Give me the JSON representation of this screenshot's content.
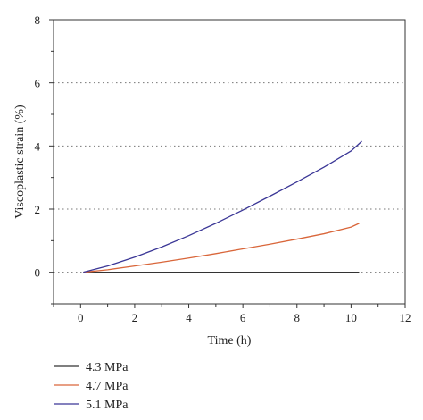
{
  "chart_data": {
    "type": "line",
    "xlabel": "Time (h)",
    "ylabel": "Viscoplastic strain (%)",
    "xlim": [
      -1,
      12
    ],
    "ylim": [
      -1,
      8
    ],
    "xticks": [
      0,
      2,
      4,
      6,
      8,
      10,
      12
    ],
    "yticks": [
      0,
      2,
      4,
      6,
      8
    ],
    "grid": "dotted horizontal lines at y ticks",
    "legend_position": "bottom-left, below plot",
    "series": [
      {
        "name": "4.3 MPa",
        "color": "#333333",
        "x": [
          0.1,
          1,
          2,
          3,
          4,
          5,
          6,
          7,
          8,
          9,
          10,
          10.3
        ],
        "y": [
          0,
          0,
          0,
          0,
          0,
          0,
          0,
          0,
          0,
          0,
          0,
          0
        ]
      },
      {
        "name": "4.7 MPa",
        "color": "#d9663a",
        "x": [
          0.1,
          1,
          2,
          3,
          4,
          5,
          6,
          7,
          8,
          9,
          10,
          10.3
        ],
        "y": [
          0,
          0.08,
          0.2,
          0.32,
          0.45,
          0.59,
          0.74,
          0.89,
          1.05,
          1.22,
          1.43,
          1.55
        ]
      },
      {
        "name": "5.1 MPa",
        "color": "#3a3696",
        "x": [
          0.1,
          1,
          2,
          3,
          4,
          5,
          6,
          7,
          8,
          9,
          10,
          10.4
        ],
        "y": [
          0,
          0.2,
          0.48,
          0.8,
          1.16,
          1.55,
          1.97,
          2.41,
          2.86,
          3.33,
          3.84,
          4.15
        ]
      }
    ]
  }
}
